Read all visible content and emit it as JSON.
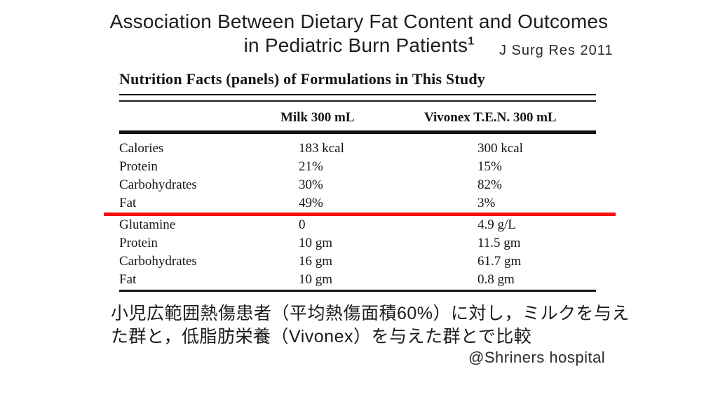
{
  "slide": {
    "title_line1": "Association Between Dietary Fat Content and Outcomes",
    "title_line2": "in Pediatric Burn Patients",
    "title_superscript": "1",
    "journal_ref": "J Surg Res 2011",
    "note_line1": "小児広範囲熱傷患者（平均熱傷面積60%）に対し，ミルクを与え",
    "note_line2": "た群と，低脂肪栄養（Vivonex）を与えた群とで比較",
    "credit": "@Shriners hospital"
  },
  "table": {
    "title": "Nutrition Facts (panels) of Formulations in This Study",
    "columns": [
      "",
      "Milk 300 mL",
      "Vivonex T.E.N. 300 mL"
    ],
    "section1": [
      {
        "label": "Calories",
        "milk": "183 kcal",
        "vivonex": "300 kcal"
      },
      {
        "label": "Protein",
        "milk": "21%",
        "vivonex": "15%"
      },
      {
        "label": "Carbohydrates",
        "milk": "30%",
        "vivonex": "82%"
      },
      {
        "label": "Fat",
        "milk": "49%",
        "vivonex": "3%"
      }
    ],
    "section2": [
      {
        "label": "Glutamine",
        "milk": "0",
        "vivonex": "4.9 g/L"
      },
      {
        "label": "Protein",
        "milk": "10 gm",
        "vivonex": "11.5 gm"
      },
      {
        "label": "Carbohydrates",
        "milk": "16 gm",
        "vivonex": "61.7 gm"
      },
      {
        "label": "Fat",
        "milk": "10 gm",
        "vivonex": "0.8 gm"
      }
    ],
    "highlight_color": "#f50f0f"
  }
}
